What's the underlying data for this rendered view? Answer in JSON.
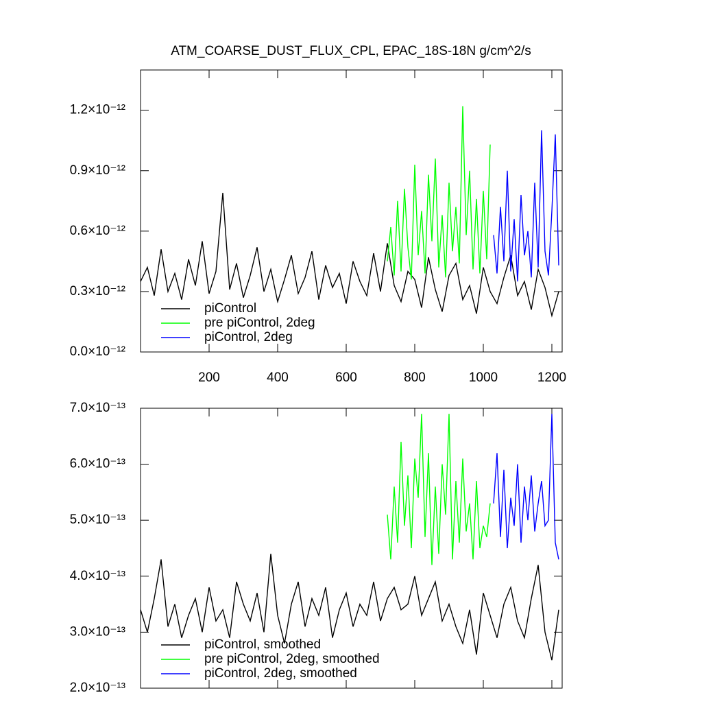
{
  "chart_data": [
    {
      "type": "line",
      "title": "ATM_COARSE_DUST_FLUX_CPL, EPAC_18S-18N  g/cm^2/s",
      "xlim": [
        0,
        1230
      ],
      "xticks": [
        200,
        400,
        600,
        800,
        1000,
        1200
      ],
      "xtick_labels": true,
      "ylim": [
        0,
        1.4e-12
      ],
      "yticks": [
        {
          "value": 0,
          "label": "0.0×10⁻¹²"
        },
        {
          "value": 3e-13,
          "label": "0.3×10⁻¹²"
        },
        {
          "value": 6e-13,
          "label": "0.6×10⁻¹²"
        },
        {
          "value": 9e-13,
          "label": "0.9×10⁻¹²"
        },
        {
          "value": 1.2e-12,
          "label": "1.2×10⁻¹²"
        }
      ],
      "series": [
        {
          "name": "piControl",
          "color": "#000000",
          "x": [
            0,
            20,
            40,
            60,
            80,
            100,
            120,
            140,
            160,
            180,
            200,
            220,
            240,
            260,
            280,
            300,
            320,
            340,
            360,
            380,
            400,
            420,
            440,
            460,
            480,
            500,
            520,
            540,
            560,
            580,
            600,
            620,
            640,
            660,
            680,
            700,
            720,
            740,
            760,
            780,
            800,
            820,
            840,
            860,
            880,
            900,
            920,
            940,
            960,
            980,
            1000,
            1020,
            1040,
            1060,
            1080,
            1100,
            1120,
            1140,
            1160,
            1180,
            1200,
            1220
          ],
          "values": [
            3.5e-13,
            4.2e-13,
            2.8e-13,
            5.1e-13,
            3e-13,
            3.9e-13,
            2.6e-13,
            4.6e-13,
            3.3e-13,
            5.5e-13,
            2.9e-13,
            4e-13,
            7.9e-13,
            3.1e-13,
            4.4e-13,
            2.7e-13,
            3.8e-13,
            5.2e-13,
            3e-13,
            4.1e-13,
            2.5e-13,
            3.6e-13,
            4.8e-13,
            2.9e-13,
            3.7e-13,
            5e-13,
            2.6e-13,
            4.3e-13,
            3.2e-13,
            3.9e-13,
            2.4e-13,
            4.5e-13,
            3.5e-13,
            2.8e-13,
            4.9e-13,
            3e-13,
            5.4e-13,
            3.3e-13,
            2.5e-13,
            4e-13,
            3.6e-13,
            2.2e-13,
            4.7e-13,
            3.1e-13,
            2e-13,
            3.8e-13,
            4.4e-13,
            2.6e-13,
            3.3e-13,
            1.9e-13,
            4.2e-13,
            3e-13,
            2.4e-13,
            3.7e-13,
            4.8e-13,
            2.8e-13,
            3.5e-13,
            2.1e-13,
            4.1e-13,
            3.2e-13,
            1.8e-13,
            3e-13
          ]
        },
        {
          "name": "pre piControl, 2deg",
          "color": "#00ff00",
          "x": [
            720,
            730,
            740,
            750,
            760,
            770,
            780,
            790,
            800,
            810,
            820,
            830,
            840,
            850,
            860,
            870,
            880,
            890,
            900,
            910,
            920,
            930,
            940,
            950,
            960,
            970,
            980,
            990,
            1000,
            1010,
            1020
          ],
          "values": [
            4.5e-13,
            6.2e-13,
            3.8e-13,
            7.5e-13,
            4e-13,
            8.1e-13,
            5.2e-13,
            3.6e-13,
            9.3e-13,
            4.8e-13,
            7e-13,
            3.9e-13,
            8.8e-13,
            5.5e-13,
            9.6e-13,
            4.2e-13,
            6.8e-13,
            3.7e-13,
            8.4e-13,
            5e-13,
            7.2e-13,
            4.4e-13,
            1.22e-12,
            5.8e-13,
            9e-13,
            4.1e-13,
            7.6e-13,
            3.9e-13,
            8e-13,
            4.6e-13,
            1.03e-12
          ]
        },
        {
          "name": "piControl, 2deg",
          "color": "#0000ff",
          "x": [
            1030,
            1040,
            1050,
            1060,
            1070,
            1080,
            1090,
            1100,
            1110,
            1120,
            1130,
            1140,
            1150,
            1160,
            1170,
            1180,
            1190,
            1200,
            1210,
            1220
          ],
          "values": [
            5.8e-13,
            3.9e-13,
            7.2e-13,
            4.5e-13,
            9e-13,
            4e-13,
            6.6e-13,
            3.5e-13,
            7.8e-13,
            4.8e-13,
            6e-13,
            3.7e-13,
            8.4e-13,
            4.2e-13,
            1.1e-12,
            5e-13,
            3.8e-13,
            7e-13,
            1.08e-12,
            4.3e-13
          ]
        }
      ]
    },
    {
      "type": "line",
      "xlim": [
        0,
        1230
      ],
      "xticks": [
        200,
        400,
        600,
        800,
        1000,
        1200
      ],
      "xtick_labels": false,
      "ylim": [
        2e-13,
        7e-13
      ],
      "yticks": [
        {
          "value": 2e-13,
          "label": "2.0×10⁻¹³"
        },
        {
          "value": 3e-13,
          "label": "3.0×10⁻¹³"
        },
        {
          "value": 4e-13,
          "label": "4.0×10⁻¹³"
        },
        {
          "value": 5e-13,
          "label": "5.0×10⁻¹³"
        },
        {
          "value": 6e-13,
          "label": "6.0×10⁻¹³"
        },
        {
          "value": 7e-13,
          "label": "7.0×10⁻¹³"
        }
      ],
      "series": [
        {
          "name": "piControl, smoothed",
          "color": "#000000",
          "x": [
            0,
            20,
            40,
            60,
            80,
            100,
            120,
            140,
            160,
            180,
            200,
            220,
            240,
            260,
            280,
            300,
            320,
            340,
            360,
            380,
            400,
            420,
            440,
            460,
            480,
            500,
            520,
            540,
            560,
            580,
            600,
            620,
            640,
            660,
            680,
            700,
            720,
            740,
            760,
            780,
            800,
            820,
            840,
            860,
            880,
            900,
            920,
            940,
            960,
            980,
            1000,
            1020,
            1040,
            1060,
            1080,
            1100,
            1120,
            1140,
            1160,
            1180,
            1200,
            1220
          ],
          "values": [
            3.4e-13,
            3e-13,
            3.6e-13,
            4.3e-13,
            3.1e-13,
            3.5e-13,
            2.9e-13,
            3.3e-13,
            3.6e-13,
            3e-13,
            3.8e-13,
            3.2e-13,
            3.4e-13,
            2.9e-13,
            3.9e-13,
            3.5e-13,
            3.2e-13,
            3.7e-13,
            3e-13,
            4.4e-13,
            3.3e-13,
            2.8e-13,
            3.5e-13,
            3.9e-13,
            3.1e-13,
            3.6e-13,
            3.3e-13,
            3.8e-13,
            2.9e-13,
            3.4e-13,
            3.7e-13,
            3.1e-13,
            3.5e-13,
            3.3e-13,
            3.9e-13,
            3.2e-13,
            3.6e-13,
            3.8e-13,
            3.4e-13,
            3.5e-13,
            4e-13,
            3.3e-13,
            3.6e-13,
            3.9e-13,
            3.2e-13,
            3.5e-13,
            3.1e-13,
            2.8e-13,
            3.4e-13,
            2.6e-13,
            3.7e-13,
            3.3e-13,
            2.9e-13,
            3.5e-13,
            3.8e-13,
            3.2e-13,
            2.9e-13,
            3.6e-13,
            4.2e-13,
            3e-13,
            2.5e-13,
            3.4e-13
          ]
        },
        {
          "name": "pre piControl, 2deg, smoothed",
          "color": "#00ff00",
          "x": [
            720,
            730,
            740,
            750,
            760,
            770,
            780,
            790,
            800,
            810,
            820,
            830,
            840,
            850,
            860,
            870,
            880,
            890,
            900,
            910,
            920,
            930,
            940,
            950,
            960,
            970,
            980,
            990,
            1000,
            1010,
            1020
          ],
          "values": [
            5.1e-13,
            4.3e-13,
            5.6e-13,
            4.6e-13,
            6.4e-13,
            4.9e-13,
            5.8e-13,
            4.5e-13,
            6.1e-13,
            5.4e-13,
            6.9e-13,
            4.7e-13,
            6.2e-13,
            4.2e-13,
            5.6e-13,
            4.4e-13,
            6e-13,
            5.1e-13,
            6.9e-13,
            4.3e-13,
            5.7e-13,
            4.6e-13,
            6.1e-13,
            4.8e-13,
            5.3e-13,
            4.3e-13,
            5.7e-13,
            4.5e-13,
            4.9e-13,
            4.7e-13,
            5.3e-13
          ]
        },
        {
          "name": "piControl, 2deg, smoothed",
          "color": "#0000ff",
          "x": [
            1030,
            1040,
            1050,
            1060,
            1070,
            1080,
            1090,
            1100,
            1110,
            1120,
            1130,
            1140,
            1150,
            1160,
            1170,
            1180,
            1190,
            1200,
            1210,
            1220
          ],
          "values": [
            5.3e-13,
            6.2e-13,
            4.7e-13,
            5.9e-13,
            4.5e-13,
            5.4e-13,
            4.9e-13,
            6e-13,
            4.6e-13,
            5.6e-13,
            5e-13,
            5.8e-13,
            4.8e-13,
            5.3e-13,
            5.7e-13,
            4.9e-13,
            5e-13,
            6.9e-13,
            4.6e-13,
            4.3e-13
          ]
        }
      ]
    }
  ]
}
